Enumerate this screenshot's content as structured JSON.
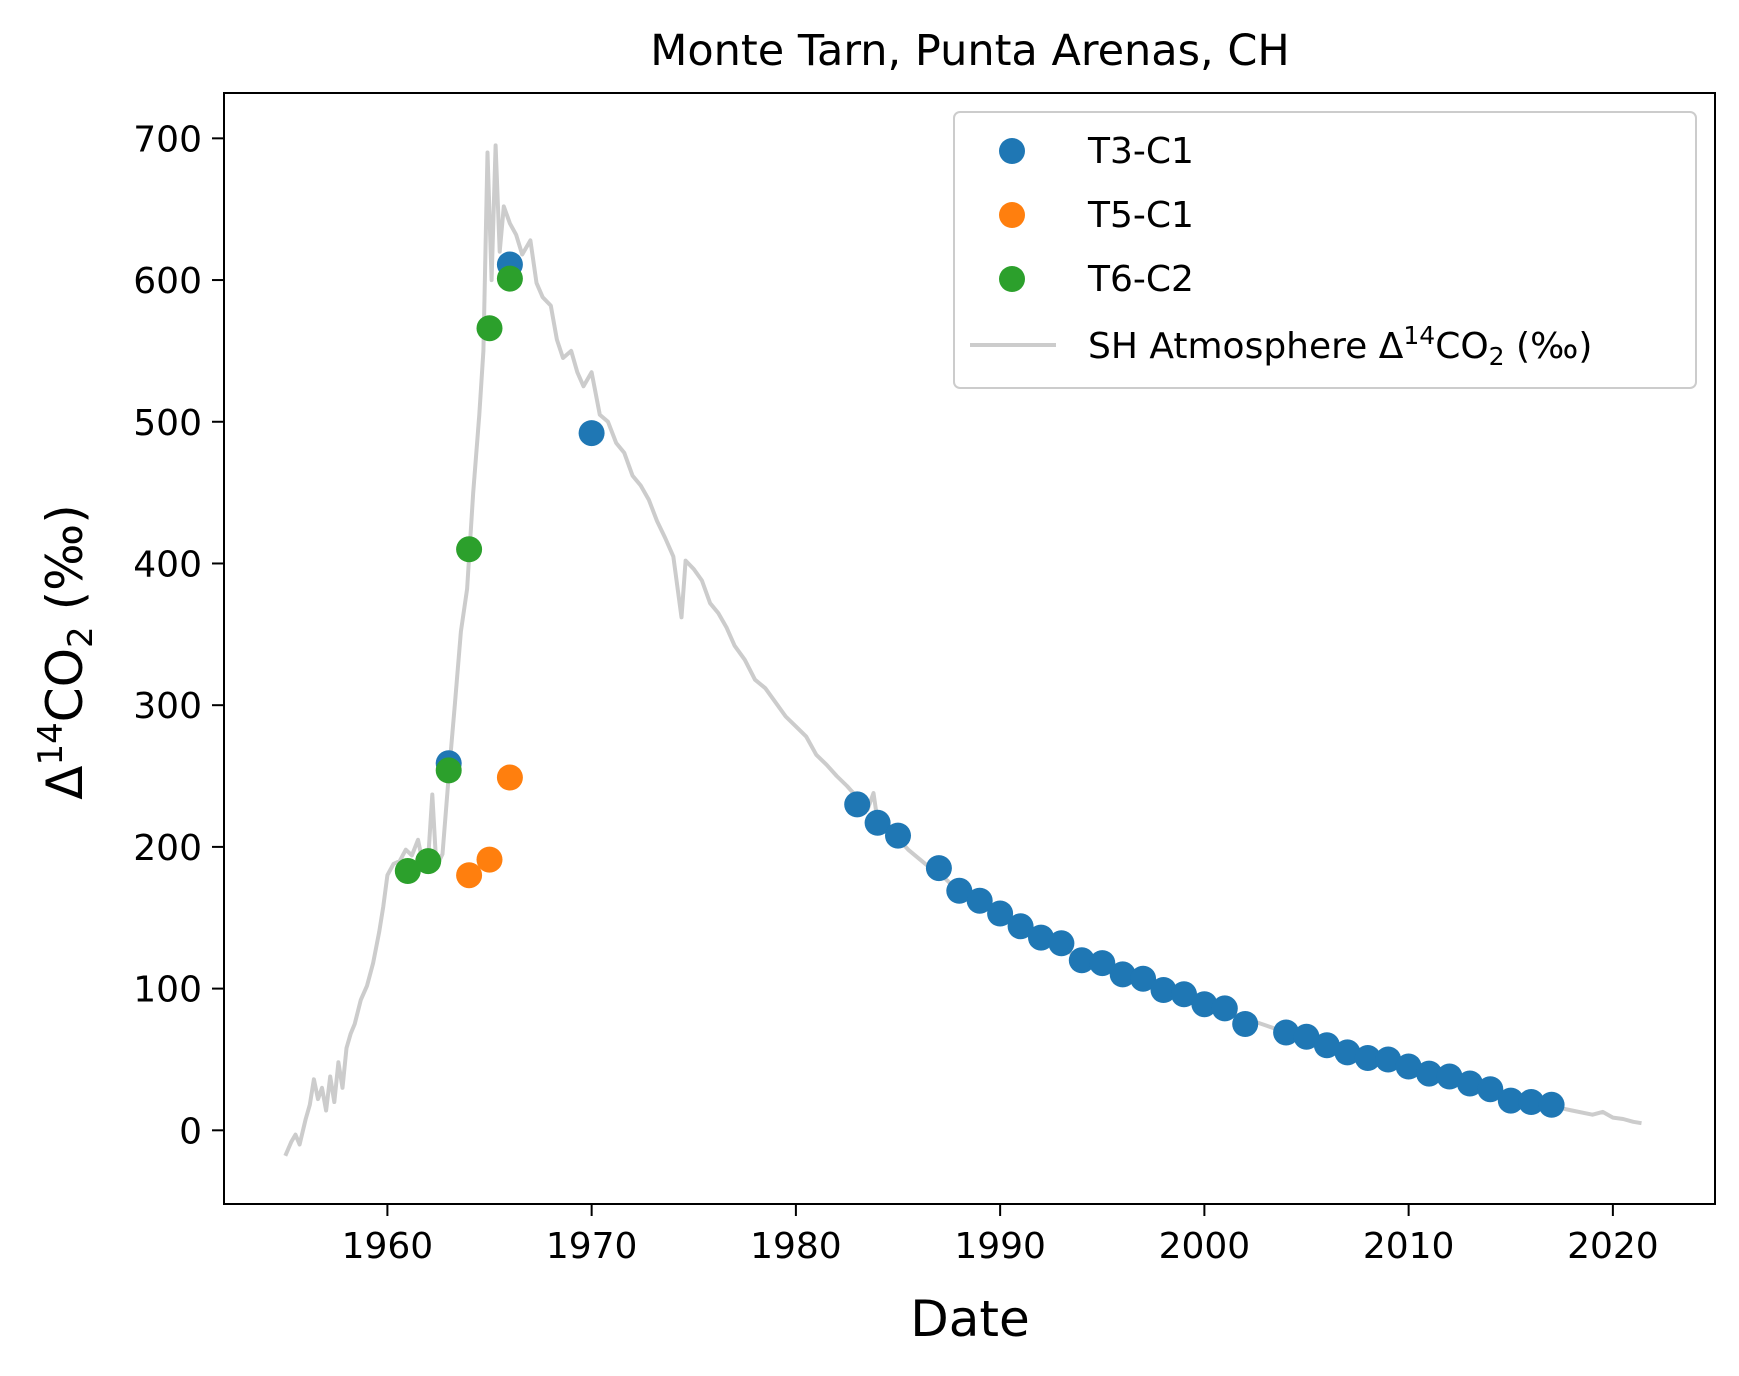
{
  "chart_data": {
    "type": "scatter",
    "title": "Monte Tarn, Punta Arenas, CH",
    "xlabel": "Date",
    "ylabel": {
      "base": "Δ",
      "sup": "14",
      "main": "CO",
      "sub": "2",
      "unit": " (‰)"
    },
    "xlim": [
      1952,
      2025
    ],
    "ylim": [
      -52,
      732
    ],
    "x_ticks": [
      1960,
      1970,
      1980,
      1990,
      2000,
      2010,
      2020
    ],
    "y_ticks": [
      0,
      100,
      200,
      300,
      400,
      500,
      600,
      700
    ],
    "grid": false,
    "legend_position": "top-right",
    "series": [
      {
        "name": "T3-C1",
        "kind": "scatter",
        "color": "#1f77b4",
        "points": [
          [
            1963,
            259
          ],
          [
            1966,
            611
          ],
          [
            1970,
            492
          ],
          [
            1983,
            230
          ],
          [
            1984,
            217
          ],
          [
            1985,
            208
          ],
          [
            1987,
            185
          ],
          [
            1988,
            169
          ],
          [
            1989,
            162
          ],
          [
            1990,
            153
          ],
          [
            1991,
            144
          ],
          [
            1992,
            136
          ],
          [
            1993,
            132
          ],
          [
            1994,
            120
          ],
          [
            1995,
            118
          ],
          [
            1996,
            110
          ],
          [
            1997,
            107
          ],
          [
            1998,
            99
          ],
          [
            1999,
            96
          ],
          [
            2000,
            89
          ],
          [
            2001,
            86
          ],
          [
            2002,
            75
          ],
          [
            2004,
            69
          ],
          [
            2005,
            66
          ],
          [
            2006,
            60
          ],
          [
            2007,
            55
          ],
          [
            2008,
            51
          ],
          [
            2009,
            50
          ],
          [
            2010,
            45
          ],
          [
            2011,
            40
          ],
          [
            2012,
            38
          ],
          [
            2013,
            33
          ],
          [
            2014,
            29
          ],
          [
            2015,
            21
          ],
          [
            2016,
            20
          ],
          [
            2017,
            18
          ]
        ]
      },
      {
        "name": "T5-C1",
        "kind": "scatter",
        "color": "#ff7f0e",
        "points": [
          [
            1964,
            180
          ],
          [
            1965,
            191
          ],
          [
            1966,
            249
          ]
        ]
      },
      {
        "name": "T6-C2",
        "kind": "scatter",
        "color": "#2ca02c",
        "points": [
          [
            1961,
            183
          ],
          [
            1962,
            190
          ],
          [
            1963,
            254
          ],
          [
            1964,
            410
          ],
          [
            1965,
            566
          ],
          [
            1966,
            601
          ]
        ]
      },
      {
        "name": {
          "base": "SH Atmosphere Δ",
          "sup": "14",
          "main": "CO",
          "sub": "2",
          "unit": " (‰)"
        },
        "kind": "line",
        "color": "#cccccc",
        "points": [
          [
            1955.0,
            -18
          ],
          [
            1955.3,
            -8
          ],
          [
            1955.5,
            -3
          ],
          [
            1955.7,
            -10
          ],
          [
            1956.0,
            8
          ],
          [
            1956.2,
            18
          ],
          [
            1956.4,
            36
          ],
          [
            1956.6,
            22
          ],
          [
            1956.8,
            30
          ],
          [
            1957.0,
            14
          ],
          [
            1957.2,
            38
          ],
          [
            1957.4,
            20
          ],
          [
            1957.6,
            48
          ],
          [
            1957.8,
            30
          ],
          [
            1958.0,
            58
          ],
          [
            1958.2,
            68
          ],
          [
            1958.4,
            75
          ],
          [
            1958.7,
            92
          ],
          [
            1959.0,
            102
          ],
          [
            1959.3,
            118
          ],
          [
            1959.6,
            140
          ],
          [
            1959.8,
            158
          ],
          [
            1960.0,
            180
          ],
          [
            1960.3,
            188
          ],
          [
            1960.6,
            190
          ],
          [
            1960.9,
            198
          ],
          [
            1961.2,
            194
          ],
          [
            1961.5,
            205
          ],
          [
            1961.8,
            184
          ],
          [
            1962.0,
            192
          ],
          [
            1962.2,
            237
          ],
          [
            1962.4,
            186
          ],
          [
            1962.7,
            195
          ],
          [
            1963.0,
            250
          ],
          [
            1963.3,
            300
          ],
          [
            1963.6,
            352
          ],
          [
            1963.9,
            382
          ],
          [
            1964.2,
            450
          ],
          [
            1964.5,
            505
          ],
          [
            1964.7,
            550
          ],
          [
            1964.9,
            690
          ],
          [
            1965.1,
            600
          ],
          [
            1965.3,
            695
          ],
          [
            1965.5,
            620
          ],
          [
            1965.7,
            652
          ],
          [
            1966.0,
            640
          ],
          [
            1966.3,
            632
          ],
          [
            1966.6,
            618
          ],
          [
            1967.0,
            628
          ],
          [
            1967.3,
            598
          ],
          [
            1967.6,
            588
          ],
          [
            1968.0,
            582
          ],
          [
            1968.3,
            558
          ],
          [
            1968.6,
            545
          ],
          [
            1969.0,
            550
          ],
          [
            1969.3,
            535
          ],
          [
            1969.6,
            525
          ],
          [
            1970.0,
            535
          ],
          [
            1970.4,
            505
          ],
          [
            1970.8,
            500
          ],
          [
            1971.2,
            485
          ],
          [
            1971.6,
            478
          ],
          [
            1972.0,
            462
          ],
          [
            1972.4,
            455
          ],
          [
            1972.8,
            445
          ],
          [
            1973.2,
            430
          ],
          [
            1973.6,
            418
          ],
          [
            1974.0,
            405
          ],
          [
            1974.4,
            362
          ],
          [
            1974.6,
            402
          ],
          [
            1975.0,
            396
          ],
          [
            1975.4,
            388
          ],
          [
            1975.8,
            372
          ],
          [
            1976.2,
            365
          ],
          [
            1976.6,
            355
          ],
          [
            1977.0,
            342
          ],
          [
            1977.5,
            332
          ],
          [
            1978.0,
            318
          ],
          [
            1978.5,
            312
          ],
          [
            1979.0,
            302
          ],
          [
            1979.5,
            292
          ],
          [
            1980.0,
            285
          ],
          [
            1980.5,
            278
          ],
          [
            1981.0,
            265
          ],
          [
            1981.5,
            258
          ],
          [
            1982.0,
            250
          ],
          [
            1982.5,
            243
          ],
          [
            1983.0,
            235
          ],
          [
            1983.5,
            226
          ],
          [
            1983.8,
            238
          ],
          [
            1984.0,
            218
          ],
          [
            1984.5,
            214
          ],
          [
            1985.0,
            206
          ],
          [
            1985.5,
            198
          ],
          [
            1986.0,
            192
          ],
          [
            1986.5,
            186
          ],
          [
            1987.0,
            182
          ],
          [
            1987.5,
            175
          ],
          [
            1988.0,
            168
          ],
          [
            1988.5,
            164
          ],
          [
            1989.0,
            160
          ],
          [
            1989.5,
            155
          ],
          [
            1990.0,
            150
          ],
          [
            1990.5,
            146
          ],
          [
            1991.0,
            142
          ],
          [
            1992.0,
            135
          ],
          [
            1993.0,
            128
          ],
          [
            1994.0,
            122
          ],
          [
            1995.0,
            116
          ],
          [
            1996.0,
            111
          ],
          [
            1997.0,
            106
          ],
          [
            1998.0,
            100
          ],
          [
            1999.0,
            95
          ],
          [
            2000.0,
            90
          ],
          [
            2001.0,
            85
          ],
          [
            2002.0,
            79
          ],
          [
            2003.0,
            74
          ],
          [
            2004.0,
            69
          ],
          [
            2005.0,
            64
          ],
          [
            2006.0,
            60
          ],
          [
            2007.0,
            55
          ],
          [
            2008.0,
            51
          ],
          [
            2009.0,
            47
          ],
          [
            2010.0,
            43
          ],
          [
            2011.0,
            39
          ],
          [
            2012.0,
            35
          ],
          [
            2013.0,
            31
          ],
          [
            2014.0,
            27
          ],
          [
            2015.0,
            23
          ],
          [
            2016.0,
            20
          ],
          [
            2017.0,
            17
          ],
          [
            2018.0,
            14
          ],
          [
            2019.0,
            11
          ],
          [
            2019.5,
            13
          ],
          [
            2020.0,
            9
          ],
          [
            2020.5,
            8
          ],
          [
            2021.0,
            6
          ],
          [
            2021.4,
            5
          ]
        ]
      }
    ]
  }
}
